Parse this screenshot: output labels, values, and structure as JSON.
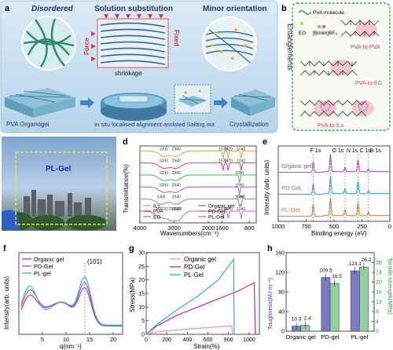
{
  "panel_a": {
    "letter": "a",
    "titles": [
      "Disordered",
      "Solution substitution",
      "Minor orientation"
    ],
    "force": "Force",
    "fixed": "Fixed",
    "shrinkage": "shrinkage",
    "labels": [
      "PVA Organogel",
      "In situ localised alignment assisted Salting out",
      "Crystallization"
    ],
    "colors": {
      "bg_top": "#cfe3f2",
      "bg_bottom": "#b5d3ea",
      "fiber": "#2f6f9a",
      "accent_red": "#d83a3a"
    }
  },
  "panel_b": {
    "letter": "b",
    "side_title": "Entanglements",
    "legend": [
      "PVA molecule",
      "EG",
      "[Bmim]BF₄"
    ],
    "labels": [
      "PVA-to-PVA",
      "PVA-to-EG",
      "PVA-to-ILs"
    ],
    "colors": {
      "border": "#3aa34a",
      "highlight": "#e78f9b",
      "label": "#c8327d"
    }
  },
  "panel_c": {
    "letter": "c",
    "label": "PL-Gel",
    "colors": {
      "sky": "#a9c6e6",
      "box": "#e8e23a"
    }
  },
  "panel_d": {
    "letter": "d",
    "chart_data": {
      "type": "line",
      "xlabel": "Wavenumbers(cm⁻¹)",
      "ylabel": "Transmittance(%)",
      "xlim": [
        4000,
        600
      ],
      "xticks": [
        4000,
        3000,
        2000,
        1600,
        800
      ],
      "series": [
        {
          "name": "ILs",
          "color": "#e6a050",
          "peaks": [
            [
              3300,
              "3300"
            ],
            [
              2940,
              "2940"
            ],
            [
              1570,
              "1570"
            ],
            [
              1420,
              "1420"
            ],
            [
              1040,
              "1040"
            ]
          ]
        },
        {
          "name": "PVA",
          "color": "#d23c78",
          "peaks": [
            [
              3300,
              "3300"
            ],
            [
              2940,
              "2940"
            ],
            [
              1570,
              "1570"
            ],
            [
              1420,
              "1420"
            ],
            [
              1040,
              "1040"
            ]
          ]
        },
        {
          "name": "EG",
          "color": "#3cb45a",
          "peaks": [
            [
              3300,
              "3300"
            ],
            [
              2940,
              "2940"
            ],
            [
              1090,
              "1090"
            ]
          ]
        },
        {
          "name": "Organic gel",
          "color": "#a25ad0",
          "peaks": [
            [
              3300,
              "3300"
            ],
            [
              2940,
              "2940"
            ],
            [
              1090,
              "1090"
            ]
          ]
        },
        {
          "name": "PD-Gel",
          "color": "#8a7ad0",
          "peaks": [
            [
              3380,
              "3380"
            ],
            [
              2940,
              "2940"
            ],
            [
              1090,
              "1090"
            ],
            [
              1040,
              "1040"
            ]
          ]
        },
        {
          "name": "PL-Gel",
          "color": "#e05ab4",
          "peaks": [
            [
              3430,
              "3430"
            ],
            [
              3170,
              "3170"
            ],
            [
              2900,
              "2900"
            ],
            [
              2940,
              "2940"
            ],
            [
              1570,
              "1570"
            ],
            [
              1420,
              "1420"
            ],
            [
              1040,
              "1040"
            ]
          ]
        }
      ]
    }
  },
  "panel_e": {
    "letter": "e",
    "chart_data": {
      "type": "line",
      "xlabel": "Binding energy (eV)",
      "ylabel": "Intensity (arb. units)",
      "xlim": [
        1000,
        0
      ],
      "xticks": [
        1000,
        750,
        500,
        250,
        0
      ],
      "peaks": [
        "F 1s",
        "O 1s",
        "N 1s",
        "C 1s",
        "B 1s"
      ],
      "series": [
        {
          "name": "Organic gel",
          "color": "#a040c8"
        },
        {
          "name": "PD-Gel",
          "color": "#20a0a0"
        },
        {
          "name": "PL-Gel",
          "color": "#e07020"
        }
      ]
    }
  },
  "panel_f": {
    "letter": "f",
    "chart_data": {
      "type": "line",
      "xlabel": "q(nm⁻¹)",
      "ylabel": "Intensity(arb. units)",
      "xlim": [
        0,
        22
      ],
      "xticks": [
        5,
        10,
        15,
        20
      ],
      "annotation": "(101)",
      "annotation_x": 14,
      "series": [
        {
          "name": "Organic gel",
          "color": "#d82a7a"
        },
        {
          "name": "PD-Gel",
          "color": "#a050d0"
        },
        {
          "name": "PL-gel",
          "color": "#20b8c8"
        }
      ]
    }
  },
  "panel_g": {
    "letter": "g",
    "chart_data": {
      "type": "line",
      "xlabel": "Strain(%)",
      "ylabel": "Stress(MPa)",
      "xlim": [
        0,
        1100
      ],
      "ylim": [
        0,
        30
      ],
      "xticks": [
        0,
        200,
        400,
        600,
        800,
        1000
      ],
      "yticks": [
        0,
        5,
        10,
        15,
        20,
        25,
        30
      ],
      "series": [
        {
          "name": "Organic gel",
          "color": "#f090b8",
          "x": [
            0,
            100,
            300,
            500,
            700,
            830,
            840
          ],
          "y": [
            0,
            0.9,
            1.6,
            2.2,
            2.8,
            3.1,
            0
          ]
        },
        {
          "name": "PD-Gel",
          "color": "#a030d0",
          "x": [
            0,
            100,
            300,
            500,
            700,
            900,
            1050,
            1060
          ],
          "y": [
            0,
            3,
            7,
            10,
            13,
            16,
            19,
            0
          ]
        },
        {
          "name": "PL-Gel",
          "color": "#20b8c8",
          "x": [
            0,
            100,
            300,
            500,
            700,
            850,
            855
          ],
          "y": [
            0,
            3.5,
            9,
            14,
            20,
            27.5,
            0
          ]
        }
      ]
    }
  },
  "panel_h": {
    "letter": "h",
    "chart_data": {
      "type": "bar",
      "categories": [
        "Organic gel",
        "PD-gel",
        "PL-gel"
      ],
      "ylabel_left": "Toughness(MJ m⁻³)",
      "ylabel_right": "Tensile strength(MPa)",
      "ylim_left": [
        0,
        160
      ],
      "ylim_right": [
        0,
        32
      ],
      "yticks_left": [
        0,
        40,
        80,
        120,
        160
      ],
      "yticks_right": [
        0,
        4,
        8,
        12,
        16,
        20,
        24,
        28
      ],
      "series": [
        {
          "name": "Toughness",
          "color": "#7b78c8",
          "values": [
            10.3,
            109.5,
            123.1
          ],
          "labels": [
            "10.3",
            "109.5",
            "123.1"
          ]
        },
        {
          "name": "Tensile strength",
          "color": "#8fd39a",
          "values": [
            2.4,
            19.5,
            26.2
          ],
          "labels": [
            "2.4",
            "19.5",
            "26.2"
          ]
        }
      ]
    }
  }
}
